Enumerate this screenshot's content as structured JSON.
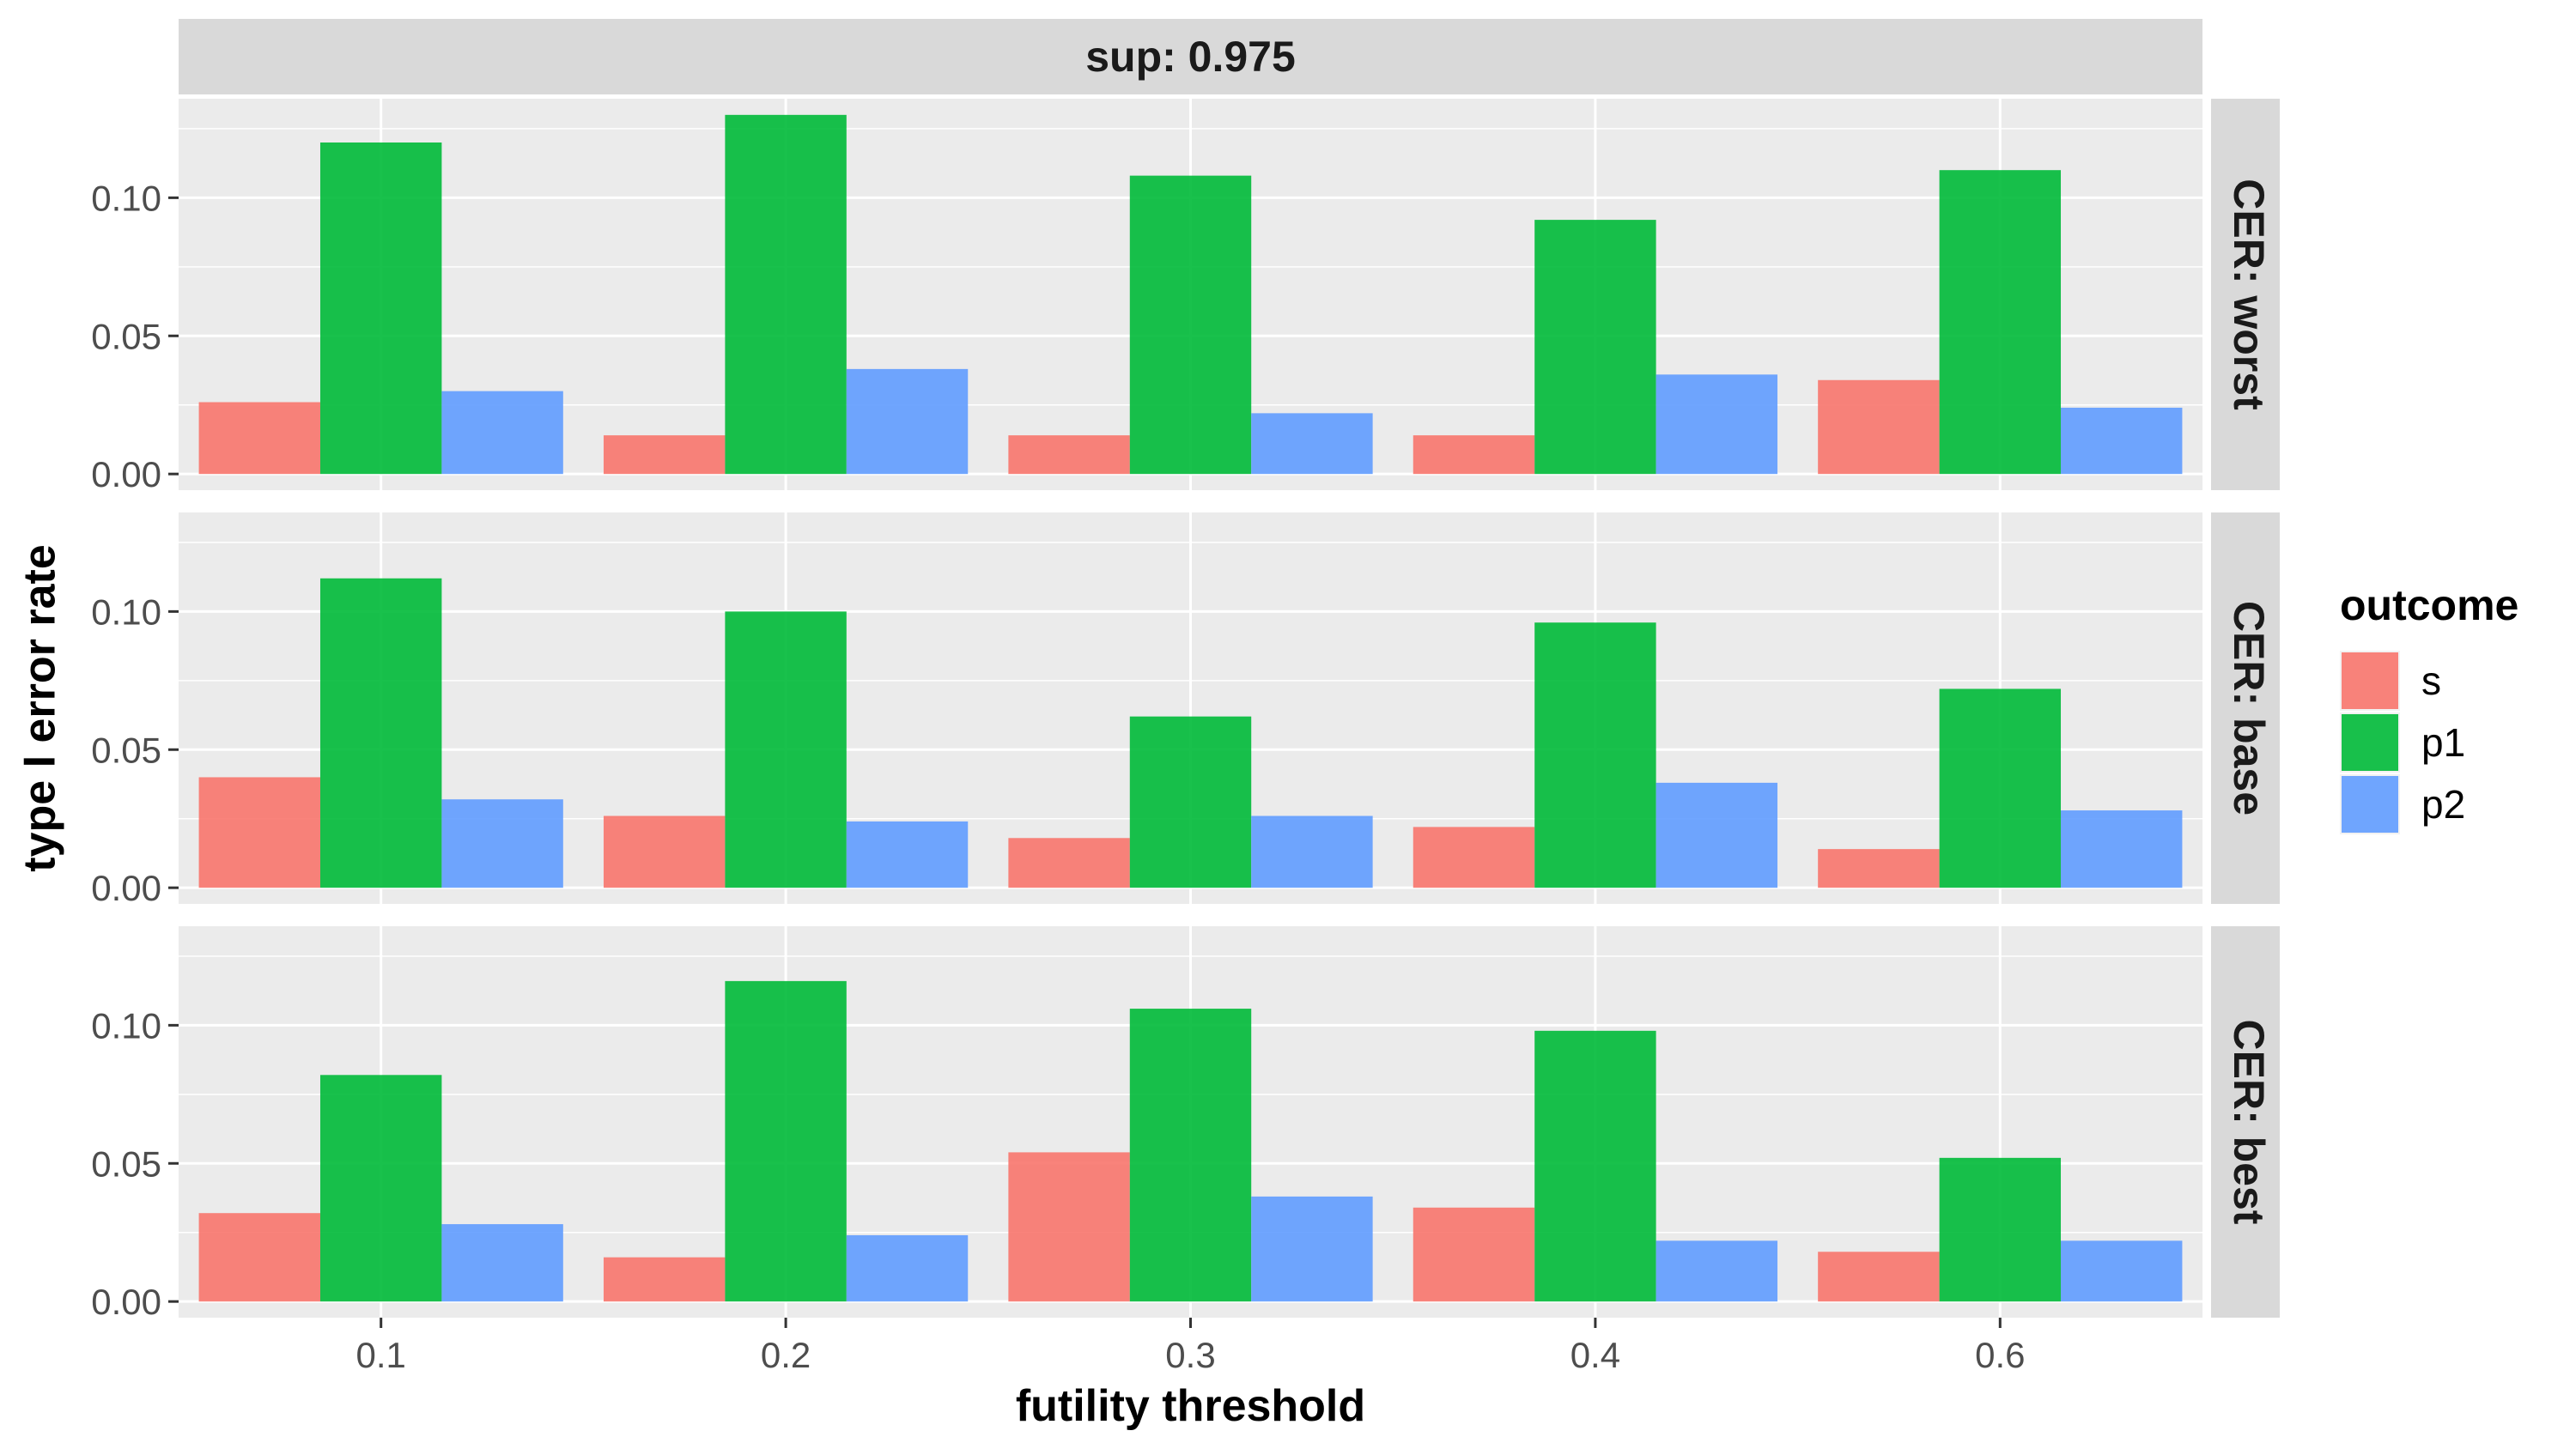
{
  "chart_data": {
    "type": "bar",
    "facet_column_label": "sup: 0.975",
    "xlabel": "futility threshold",
    "ylabel": "type I error rate",
    "categories": [
      "0.1",
      "0.2",
      "0.3",
      "0.4",
      "0.6"
    ],
    "ylim": [
      0,
      0.13
    ],
    "yticks": [
      0.0,
      0.05,
      0.1
    ],
    "ytick_labels": [
      "0.00",
      "0.05",
      "0.10"
    ],
    "grid": true,
    "legend": {
      "title": "outcome",
      "position": "right",
      "entries": [
        {
          "label": "s",
          "color": "#F8766D"
        },
        {
          "label": "p1",
          "color": "#00BA38"
        },
        {
          "label": "p2",
          "color": "#619CFF"
        }
      ]
    },
    "panels": [
      {
        "label": "CER: worst",
        "series": [
          {
            "name": "s",
            "values": [
              0.026,
              0.014,
              0.014,
              0.014,
              0.034
            ]
          },
          {
            "name": "p1",
            "values": [
              0.12,
              0.13,
              0.108,
              0.092,
              0.11
            ]
          },
          {
            "name": "p2",
            "values": [
              0.03,
              0.038,
              0.022,
              0.036,
              0.024
            ]
          }
        ]
      },
      {
        "label": "CER: base",
        "series": [
          {
            "name": "s",
            "values": [
              0.04,
              0.026,
              0.018,
              0.022,
              0.014
            ]
          },
          {
            "name": "p1",
            "values": [
              0.112,
              0.1,
              0.062,
              0.096,
              0.072
            ]
          },
          {
            "name": "p2",
            "values": [
              0.032,
              0.024,
              0.026,
              0.038,
              0.028
            ]
          }
        ]
      },
      {
        "label": "CER: best",
        "series": [
          {
            "name": "s",
            "values": [
              0.032,
              0.016,
              0.054,
              0.034,
              0.018
            ]
          },
          {
            "name": "p1",
            "values": [
              0.082,
              0.116,
              0.106,
              0.098,
              0.052
            ]
          },
          {
            "name": "p2",
            "values": [
              0.028,
              0.024,
              0.038,
              0.022,
              0.022
            ]
          }
        ]
      }
    ],
    "colors": {
      "panel_background": "#EBEBEB",
      "strip_background": "#D9D9D9",
      "grid": "#FFFFFF"
    }
  }
}
